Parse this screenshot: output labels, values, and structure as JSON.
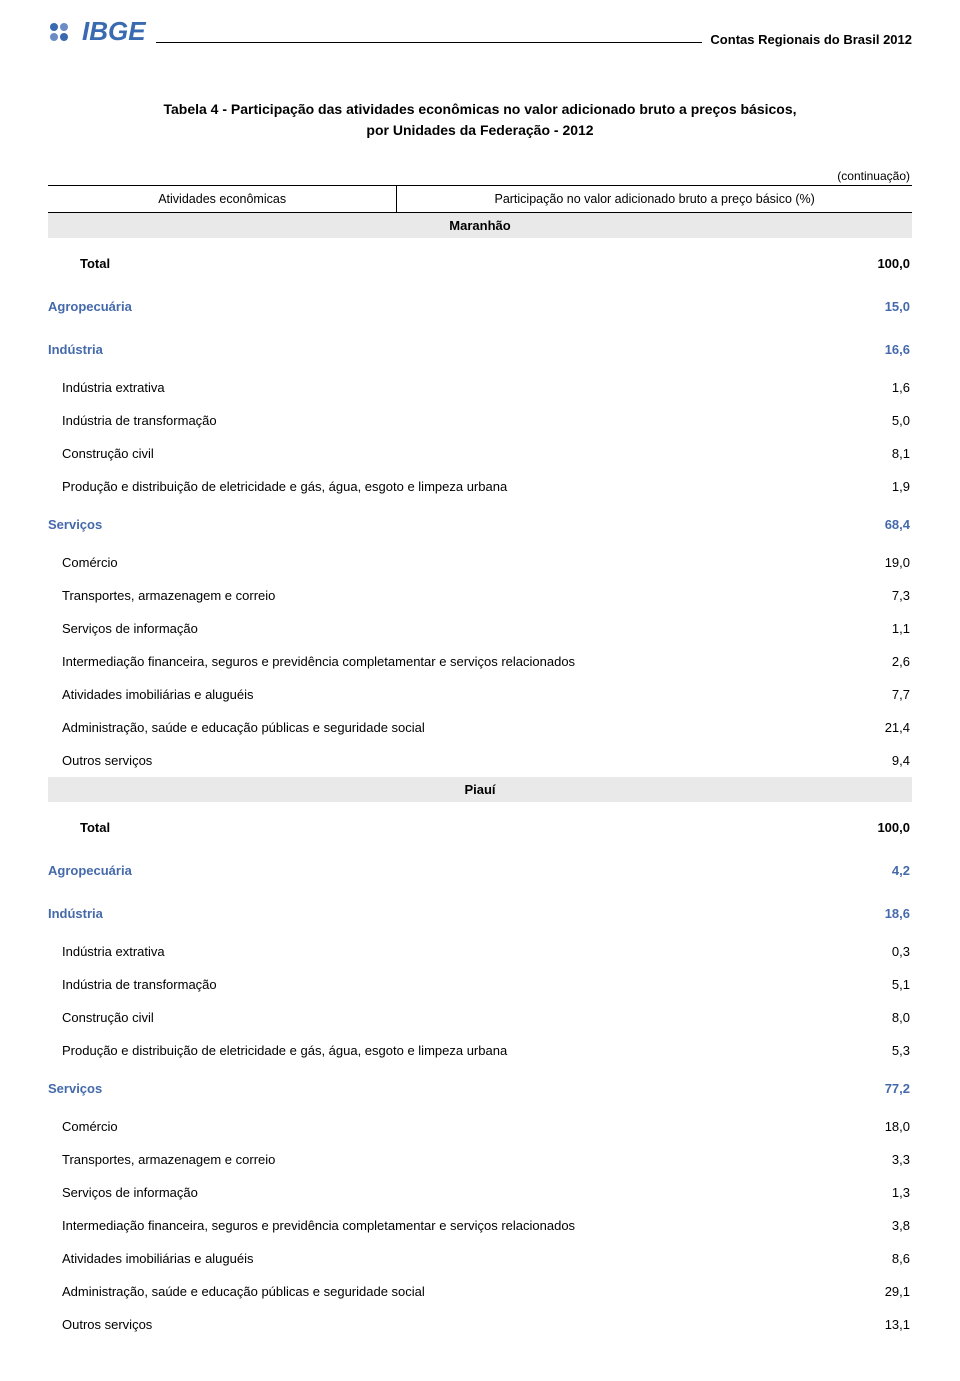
{
  "header": {
    "logo_text": "IBGE",
    "document_title": "Contas Regionais do Brasil 2012"
  },
  "table_title_line1": "Tabela 4 - Participação das atividades econômicas no valor adicionado bruto a preços básicos,",
  "table_title_line2": "por Unidades da Federação - 2012",
  "continuation": "(continuação)",
  "columns": {
    "activities": "Atividades econômicas",
    "participation": "Participação no valor adicionado bruto a preço básico (%)"
  },
  "states": [
    {
      "name": "Maranhão",
      "rows": [
        {
          "label": "Total",
          "value": "100,0",
          "type": "total"
        },
        {
          "label": "Agropecuária",
          "value": "15,0",
          "type": "sector"
        },
        {
          "label": "Indústria",
          "value": "16,6",
          "type": "sector"
        },
        {
          "label": "Indústria extrativa",
          "value": "1,6",
          "type": "sub"
        },
        {
          "label": "Indústria de transformação",
          "value": "5,0",
          "type": "sub"
        },
        {
          "label": "Construção civil",
          "value": "8,1",
          "type": "sub"
        },
        {
          "label": "Produção e distribuição de eletricidade e gás, água, esgoto e limpeza urbana",
          "value": "1,9",
          "type": "sub"
        },
        {
          "label": "Serviços",
          "value": "68,4",
          "type": "sector"
        },
        {
          "label": "Comércio",
          "value": "19,0",
          "type": "sub"
        },
        {
          "label": "Transportes, armazenagem e correio",
          "value": "7,3",
          "type": "sub"
        },
        {
          "label": "Serviços de informação",
          "value": "1,1",
          "type": "sub"
        },
        {
          "label": "Intermediação financeira, seguros e previdência completamentar e serviços relacionados",
          "value": "2,6",
          "type": "sub"
        },
        {
          "label": "Atividades imobiliárias e aluguéis",
          "value": "7,7",
          "type": "sub"
        },
        {
          "label": "Administração, saúde e educação públicas e seguridade social",
          "value": "21,4",
          "type": "sub"
        },
        {
          "label": "Outros serviços",
          "value": "9,4",
          "type": "sub"
        }
      ]
    },
    {
      "name": "Piauí",
      "rows": [
        {
          "label": "Total",
          "value": "100,0",
          "type": "total"
        },
        {
          "label": "Agropecuária",
          "value": "4,2",
          "type": "sector"
        },
        {
          "label": "Indústria",
          "value": "18,6",
          "type": "sector"
        },
        {
          "label": "Indústria extrativa",
          "value": "0,3",
          "type": "sub"
        },
        {
          "label": "Indústria de transformação",
          "value": "5,1",
          "type": "sub"
        },
        {
          "label": "Construção civil",
          "value": "8,0",
          "type": "sub"
        },
        {
          "label": "Produção e distribuição de eletricidade e gás, água, esgoto e limpeza urbana",
          "value": "5,3",
          "type": "sub"
        },
        {
          "label": "Serviços",
          "value": "77,2",
          "type": "sector"
        },
        {
          "label": "Comércio",
          "value": "18,0",
          "type": "sub"
        },
        {
          "label": "Transportes, armazenagem e correio",
          "value": "3,3",
          "type": "sub"
        },
        {
          "label": "Serviços de informação",
          "value": "1,3",
          "type": "sub"
        },
        {
          "label": "Intermediação financeira, seguros e previdência completamentar e serviços relacionados",
          "value": "3,8",
          "type": "sub"
        },
        {
          "label": "Atividades imobiliárias e aluguéis",
          "value": "8,6",
          "type": "sub"
        },
        {
          "label": "Administração, saúde e educação públicas e seguridade social",
          "value": "29,1",
          "type": "sub"
        },
        {
          "label": "Outros serviços",
          "value": "13,1",
          "type": "sub"
        }
      ]
    }
  ]
}
